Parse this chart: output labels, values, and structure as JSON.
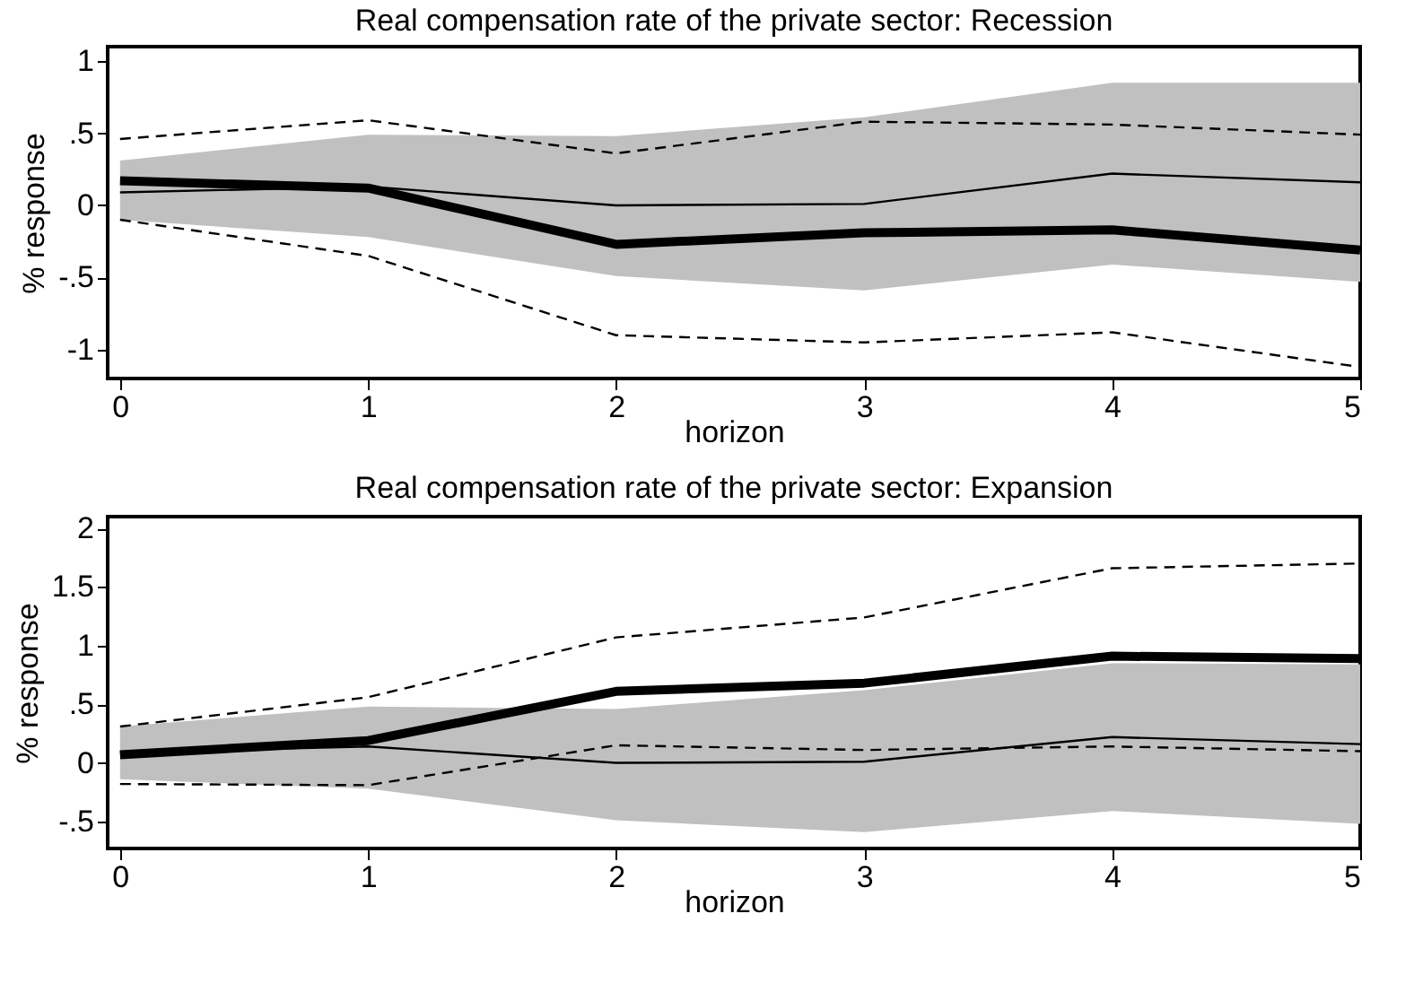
{
  "chart_data": [
    {
      "type": "line",
      "title": "Real compensation rate of the private sector: Recession",
      "xlabel": "horizon",
      "ylabel": "% response",
      "x": [
        0,
        1,
        2,
        3,
        4,
        5
      ],
      "xlim": [
        -0.05,
        5
      ],
      "xticks": [
        0,
        1,
        2,
        3,
        4,
        5
      ],
      "ylim": [
        -1.2,
        1.1
      ],
      "yticks": [
        {
          "value": -1,
          "label": "-1"
        },
        {
          "value": -0.5,
          "label": "-.5"
        },
        0,
        {
          "value": 0.5,
          "label": ".5"
        },
        1
      ],
      "grid": false,
      "series": [
        {
          "color": "#000000",
          "values": [
            0.09,
            0.13,
            0,
            0.01,
            0.22,
            0.16
          ],
          "lower": [
            -0.1,
            -0.22,
            -0.49,
            -0.59,
            -0.41,
            -0.53
          ],
          "upper": [
            0.31,
            0.49,
            0.48,
            0.61,
            0.85,
            0.85
          ],
          "line_style": "solid"
        },
        {
          "color": "#000000",
          "values": [
            0.46,
            0.59,
            0.36,
            0.58,
            0.56,
            0.49
          ],
          "line_style": "dashed"
        },
        {
          "color": "#000000",
          "values": [
            -0.1,
            -0.35,
            -0.9,
            -0.95,
            -0.88,
            -1.12
          ],
          "line_style": "dashed"
        },
        {
          "color": "#000000",
          "values": [
            0.17,
            0.12,
            -0.27,
            -0.19,
            -0.17,
            -0.31
          ],
          "line_style": "solid"
        }
      ]
    },
    {
      "type": "line",
      "title": "Real compensation rate of the private sector: Expansion",
      "xlabel": "horizon",
      "ylabel": "% response",
      "x": [
        0,
        1,
        2,
        3,
        4,
        5
      ],
      "xlim": [
        -0.05,
        5
      ],
      "xticks": [
        0,
        1,
        2,
        3,
        4,
        5
      ],
      "ylim": [
        -0.73,
        2.1
      ],
      "yticks": [
        {
          "value": -0.5,
          "label": "-.5"
        },
        0,
        {
          "value": 0.5,
          "label": ".5"
        },
        1,
        1.5,
        2
      ],
      "grid": false,
      "series": [
        {
          "color": "#000000",
          "values": [
            0.09,
            0.14,
            0,
            0.01,
            0.22,
            0.16
          ],
          "lower": [
            -0.14,
            -0.22,
            -0.49,
            -0.59,
            -0.41,
            -0.52
          ],
          "upper": [
            0.31,
            0.48,
            0.46,
            0.62,
            0.85,
            0.84
          ],
          "line_style": "solid"
        },
        {
          "color": "#000000",
          "values": [
            0.31,
            0.56,
            1.07,
            1.24,
            1.66,
            1.7
          ],
          "line_style": "dashed"
        },
        {
          "color": "#000000",
          "values": [
            -0.18,
            -0.19,
            0.15,
            0.11,
            0.14,
            0.1
          ],
          "line_style": "dashed"
        },
        {
          "color": "#000000",
          "values": [
            0.07,
            0.19,
            0.61,
            0.68,
            0.91,
            0.89
          ],
          "line_style": "solid"
        }
      ]
    }
  ]
}
